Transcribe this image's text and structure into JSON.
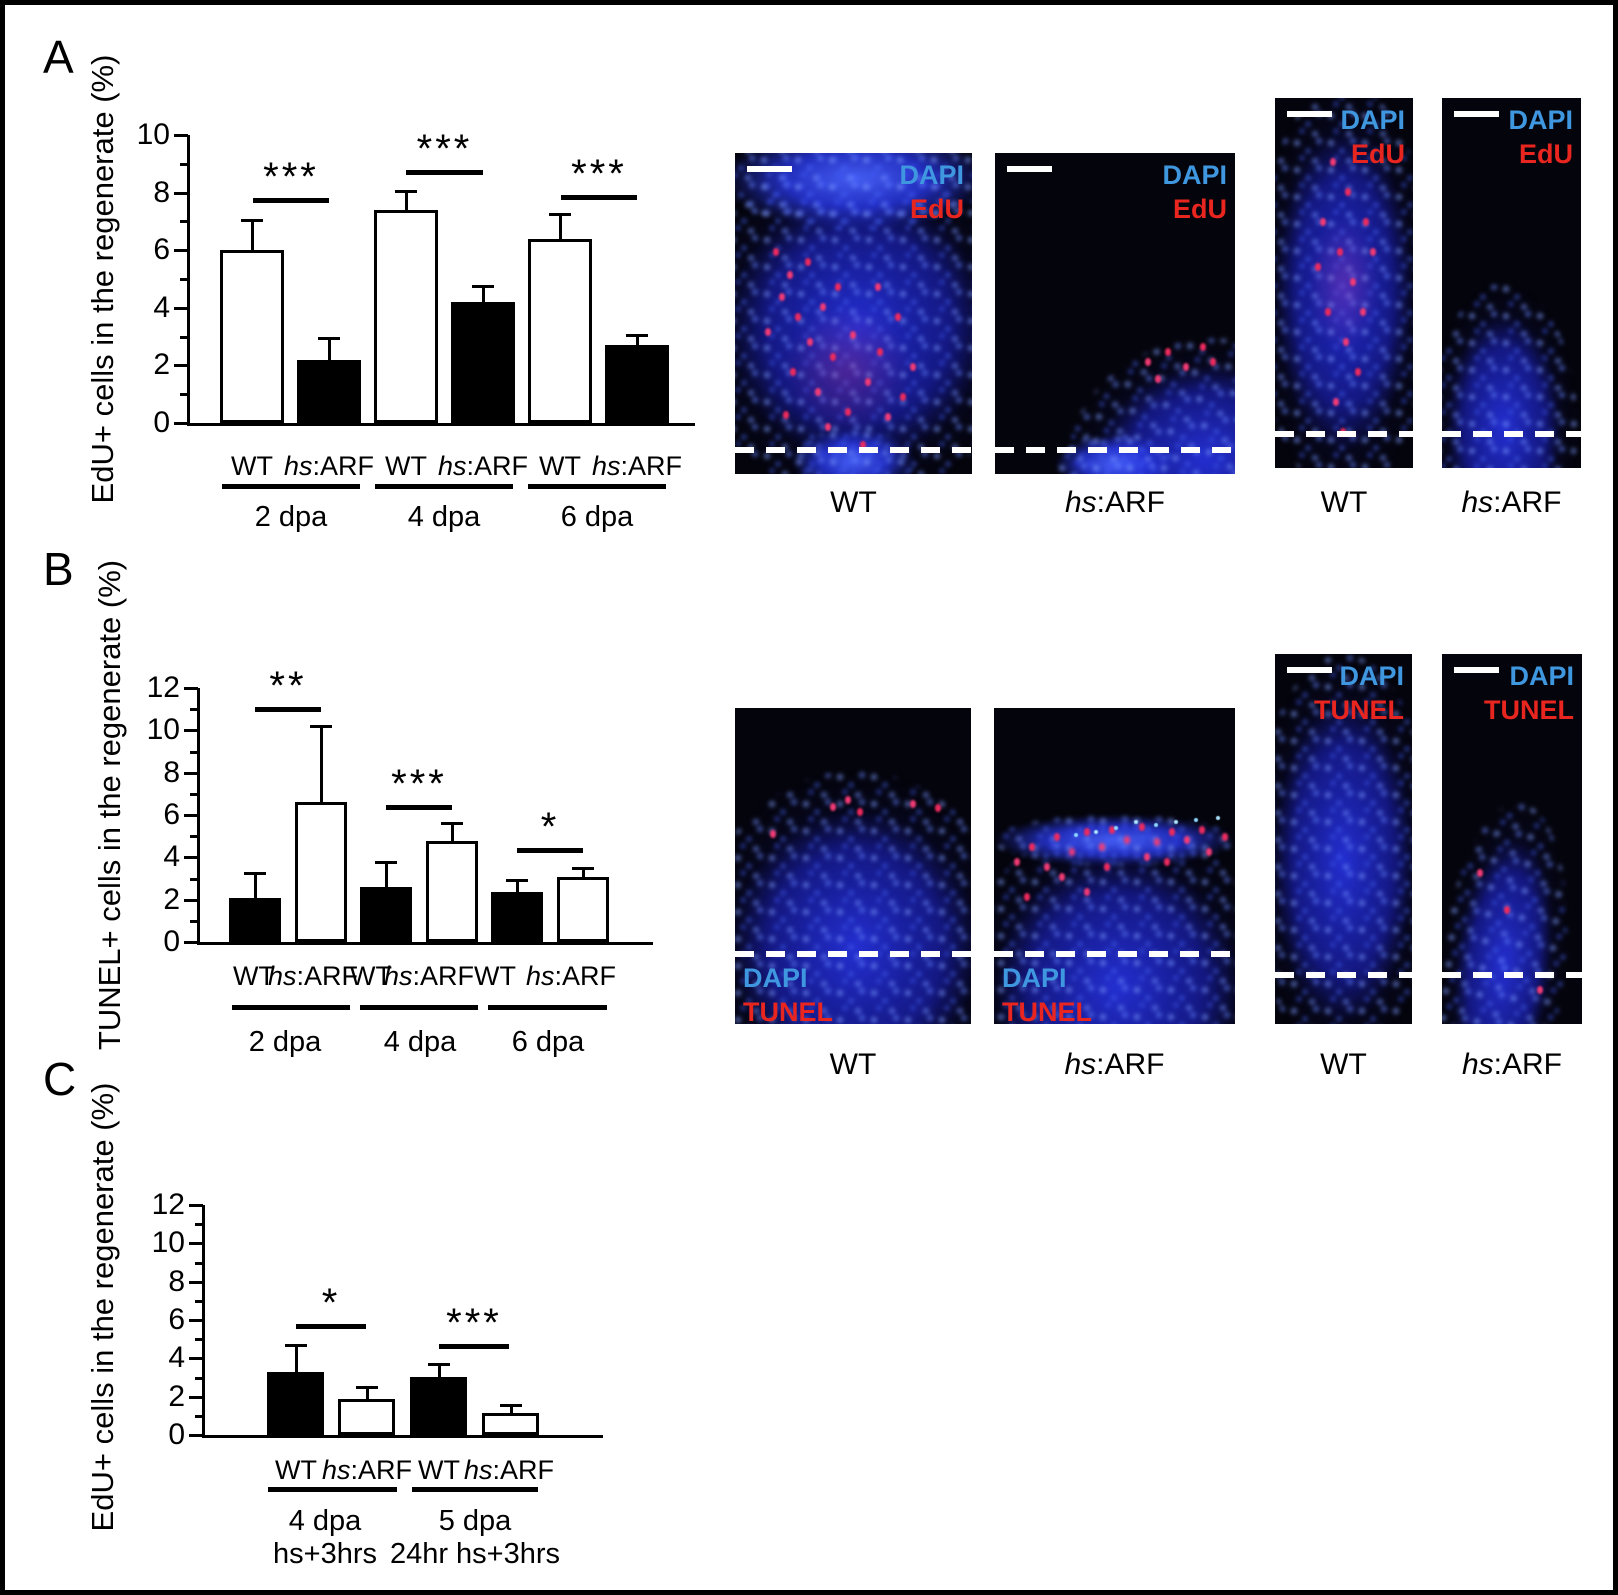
{
  "figure": {
    "background": "#ffffff",
    "border_color": "#000000"
  },
  "colors": {
    "dapi_label": "#3f97e0",
    "marker_label": "#e8251f",
    "scale_bar": "#ffffff",
    "bar_white": "#ffffff",
    "bar_black": "#000000"
  },
  "panels": [
    {
      "letter": "A",
      "images": [
        {
          "id": "a1",
          "caption": "WT",
          "overlay": [
            "DAPI",
            "EdU"
          ],
          "overlay_corner": "top-right",
          "scale_bar": true,
          "dashed_line": true
        },
        {
          "id": "a2",
          "caption": "hs:ARF",
          "overlay": [
            "DAPI",
            "EdU"
          ],
          "overlay_corner": "top-right",
          "scale_bar": true,
          "dashed_line": true
        },
        {
          "id": "a3",
          "caption": "WT",
          "overlay": [
            "DAPI",
            "EdU"
          ],
          "overlay_corner": "top-right",
          "scale_bar": true,
          "dashed_line": true
        },
        {
          "id": "a4",
          "caption": "hs:ARF",
          "overlay": [
            "DAPI",
            "EdU"
          ],
          "overlay_corner": "top-right",
          "scale_bar": true,
          "dashed_line": true
        }
      ]
    },
    {
      "letter": "B",
      "images": [
        {
          "id": "b1",
          "caption": "WT",
          "overlay": [
            "DAPI",
            "TUNEL"
          ],
          "overlay_corner": "bottom-left",
          "scale_bar": false,
          "dashed_line": true
        },
        {
          "id": "b2",
          "caption": "hs:ARF",
          "overlay": [
            "DAPI",
            "TUNEL"
          ],
          "overlay_corner": "bottom-left",
          "scale_bar": false,
          "dashed_line": true
        },
        {
          "id": "b3",
          "caption": "WT",
          "overlay": [
            "DAPI",
            "TUNEL"
          ],
          "overlay_corner": "top-right",
          "scale_bar": true,
          "dashed_line": true
        },
        {
          "id": "b4",
          "caption": "hs:ARF",
          "overlay": [
            "DAPI",
            "TUNEL"
          ],
          "overlay_corner": "top-right",
          "scale_bar": true,
          "dashed_line": true
        }
      ]
    },
    {
      "letter": "C",
      "images": []
    }
  ],
  "chart_data": [
    {
      "type": "bar",
      "panel": "A",
      "ylabel": "EdU+ cells in the regenerate (%)",
      "ylim": [
        0,
        10
      ],
      "yticks": [
        0,
        2,
        4,
        6,
        8,
        10
      ],
      "grid": false,
      "group_labels": [
        [
          "2 dpa"
        ],
        [
          "4 dpa"
        ],
        [
          "6 dpa"
        ]
      ],
      "bar_labels": [
        "WT",
        "hs:ARF"
      ],
      "series": [
        {
          "name": "WT",
          "fill": "#ffffff",
          "values": [
            6.0,
            7.4,
            6.4
          ],
          "errors": [
            1.1,
            0.7,
            0.9
          ]
        },
        {
          "name": "hs:ARF",
          "fill": "#000000",
          "values": [
            2.2,
            4.2,
            2.7
          ],
          "errors": [
            0.8,
            0.6,
            0.4
          ]
        }
      ],
      "significance": [
        {
          "label": "***"
        },
        {
          "label": "***"
        },
        {
          "label": "***"
        }
      ]
    },
    {
      "type": "bar",
      "panel": "B",
      "ylabel": "TUNEL+ cells in the regenerate (%)",
      "ylim": [
        0,
        12
      ],
      "yticks": [
        0,
        2,
        4,
        6,
        8,
        10,
        12
      ],
      "grid": false,
      "group_labels": [
        [
          "2 dpa"
        ],
        [
          "4 dpa"
        ],
        [
          "6 dpa"
        ]
      ],
      "bar_labels": [
        "WT",
        "hs:ARF"
      ],
      "series": [
        {
          "name": "WT",
          "fill": "#000000",
          "values": [
            2.1,
            2.6,
            2.35
          ],
          "errors": [
            1.2,
            1.25,
            0.65
          ]
        },
        {
          "name": "hs:ARF",
          "fill": "#ffffff",
          "values": [
            6.6,
            4.75,
            3.05
          ],
          "errors": [
            3.65,
            0.9,
            0.5
          ]
        }
      ],
      "significance": [
        {
          "label": "**"
        },
        {
          "label": "***"
        },
        {
          "label": "*"
        }
      ]
    },
    {
      "type": "bar",
      "panel": "C",
      "ylabel": "EdU+ cells in the regenerate (%)",
      "ylim": [
        0,
        12
      ],
      "yticks": [
        0,
        2,
        4,
        6,
        8,
        10,
        12
      ],
      "grid": false,
      "group_labels": [
        [
          "4 dpa",
          "hs+3hrs"
        ],
        [
          "5 dpa",
          "24hr hs+3hrs"
        ]
      ],
      "bar_labels": [
        "WT",
        "hs:ARF"
      ],
      "series": [
        {
          "name": "WT",
          "fill": "#000000",
          "values": [
            3.3,
            3.05
          ],
          "errors": [
            1.45,
            0.7
          ]
        },
        {
          "name": "hs:ARF",
          "fill": "#ffffff",
          "values": [
            1.9,
            1.15
          ],
          "errors": [
            0.65,
            0.45
          ]
        }
      ],
      "significance": [
        {
          "label": "*"
        },
        {
          "label": "***"
        }
      ]
    }
  ]
}
